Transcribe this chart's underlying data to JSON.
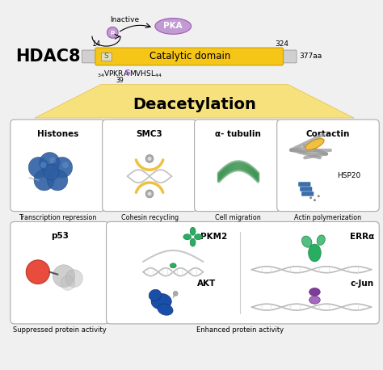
{
  "bg_color": "#f0f0f0",
  "hdac8_label": "HDAC8",
  "catalytic_domain_label": "Catalytic domain",
  "catalytic_color": "#f5c518",
  "s_label": "S",
  "pka_label": "PKA",
  "pka_color": "#9b59b6",
  "pka_fill": "#c39bd3",
  "inactive_label": "Inactive",
  "num14": "14",
  "num324": "324",
  "num377": "377aa",
  "num39": "39",
  "deacetylation_label": "Deacetylation",
  "box_titles_top": [
    "Histones",
    "SMC3",
    "α- tubulin",
    "Cortactin"
  ],
  "box_subtitle_cortactin": "HSP20",
  "box_captions": [
    "Transcription repression",
    "Cohesin recycling",
    "Cell migration",
    "Actin polymerization"
  ],
  "p53_title": "p53",
  "p53_caption": "Suppressed protein activity",
  "pkm2_label": "PKM2",
  "akt_label": "AKT",
  "erra_label": "ERRα",
  "cjun_label": "c-Jun",
  "enhanced_caption": "Enhanced protein activity",
  "histone_color": "#2e5fa3",
  "histone_dark": "#1a3f6f",
  "histone_light": "#6a9fd8",
  "tubulin_color": "#2e8b44",
  "pkm2_color": "#27ae60",
  "pkm2_light": "#52be80",
  "akt_color": "#1a4fa8",
  "akt_dark": "#0d2f6e",
  "erra_color": "#27ae60",
  "erra_light": "#52be80",
  "cjun_color": "#7d3c98",
  "cjun_light": "#a569bd",
  "p53_red": "#e74c3c",
  "gold_color": "#f0c040",
  "gray_color": "#aaaaaa"
}
